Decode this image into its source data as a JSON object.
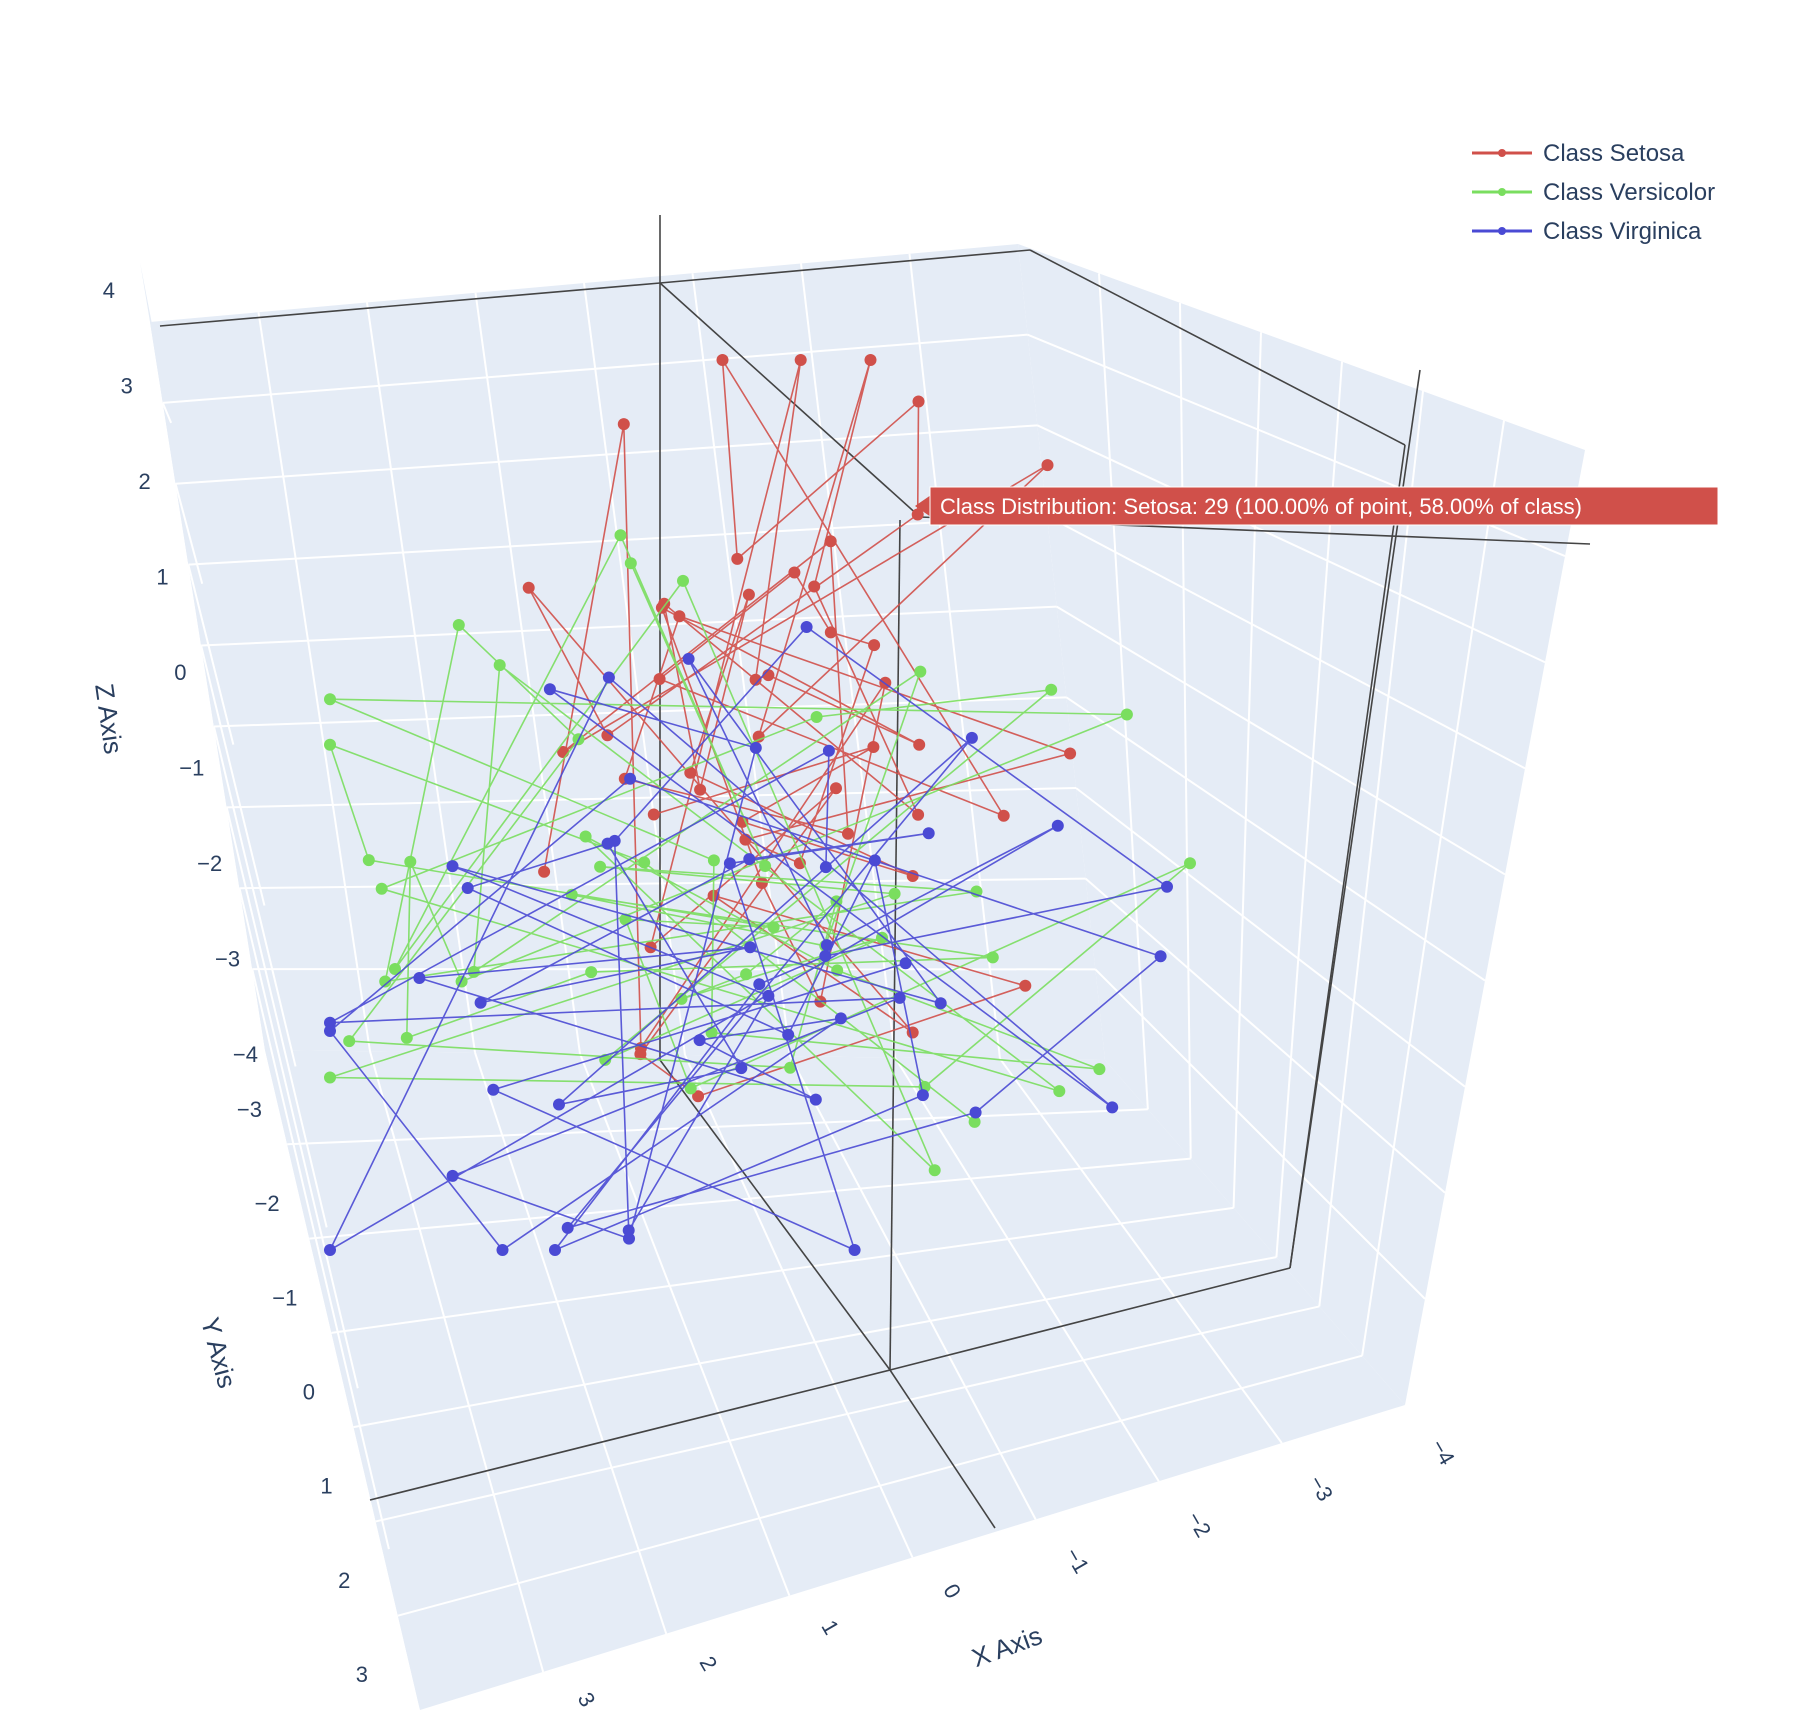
{
  "chart_data": {
    "type": "scatter3d",
    "mode": "lines+markers",
    "title": "",
    "axes": {
      "x": {
        "title": "X Axis",
        "ticks": [
          "3",
          "2",
          "1",
          "0",
          "−1",
          "−2",
          "−3",
          "−4"
        ]
      },
      "y": {
        "title": "Y Axis",
        "ticks": [
          "−3",
          "−2",
          "−1",
          "0",
          "1",
          "2",
          "3"
        ]
      },
      "z": {
        "title": "Z Axis",
        "ticks": [
          "4",
          "3",
          "2",
          "1",
          "0",
          "−1",
          "−2",
          "−3",
          "−4"
        ]
      }
    },
    "background_color": "#e5ecf6",
    "grid": true,
    "legend_position": "top-right",
    "series": [
      {
        "name": "Class Setosa",
        "color": "#d0504a",
        "point_count": 50
      },
      {
        "name": "Class Versicolor",
        "color": "#7ade5f",
        "point_count": 50
      },
      {
        "name": "Class Virginica",
        "color": "#4a4ad4",
        "point_count": 50
      }
    ],
    "hover": {
      "series": "Class Setosa",
      "text": "Class Distribution: Setosa: 29 (100.00% of point, 58.00% of class)"
    }
  }
}
